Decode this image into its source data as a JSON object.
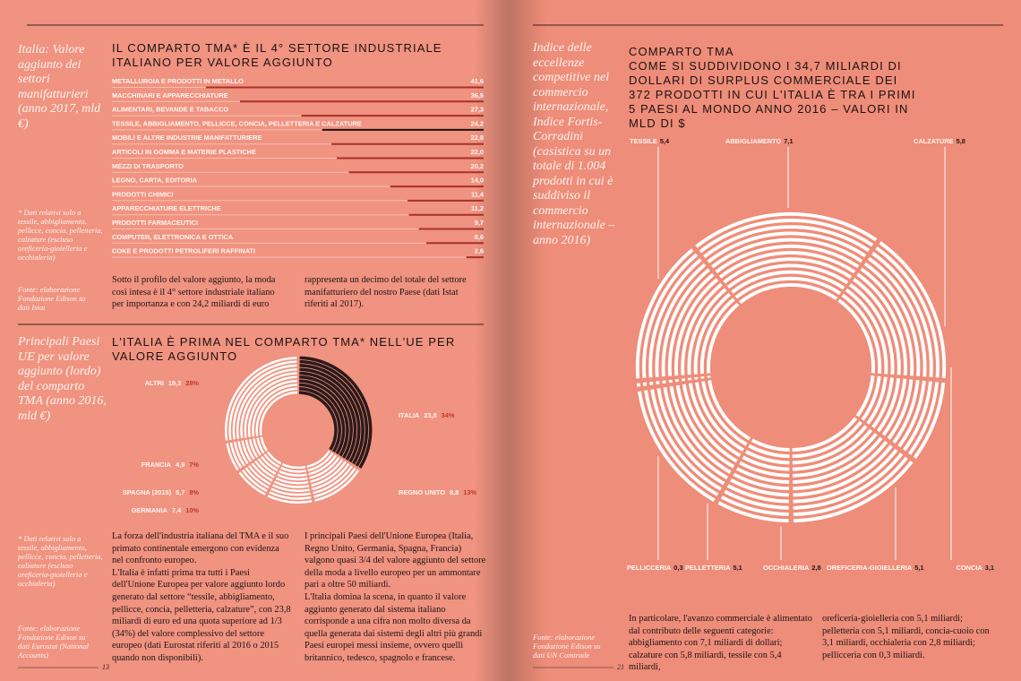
{
  "left_page": {
    "sidebar_1": "Italia: Valore aggiunto dei settori manifatturieri (anno 2017, mld €)",
    "note_1": "* Dati relativi solo a tessile, abbigliamento, pellicce, concia, pelletteria, calzature (escluso oreficeria-gioielleria e occhialeria)",
    "source_1": "Fonte: elaborazione Fondazione Edison su dati Istat",
    "text_1": [
      "Sotto il profilo del valore aggiunto, la moda così intesa è il 4° settore industriale italiano per importanza e con 24,2 miliardi di euro",
      "rappresenta un decimo del totale del settore manifatturiero del nostro Paese (dati Istat riferiti al 2017)."
    ],
    "sidebar_2": "Principali Paesi UE per valore aggiunto (lordo) del comparto TMA (anno 2016, mld €)",
    "note_2": "* Dati relativi solo a tessile, abbigliamento, pellicce, concia, pelletteria, calzature (escluso oreficeria-gioielleria e occhialeria)",
    "source_2": "Fonte: elaborazione Fondazione Edison su dati Eurostat (National Accounts)",
    "text_2": [
      [
        "La forza dell'industria italiana del TMA e il suo primato continentale emergono con evidenza nel confronto europeo.",
        "L'Italia è infatti prima tra tutti i Paesi dell'Unione Europea per valore aggiunto lordo generato dal settore “tessile, abbigliamento, pellicce, concia, pelletteria, calzature”, con 23,8 miliardi di euro ed una quota superiore ad 1/3 (34%) del valore complessivo del settore europeo (dati Eurostat riferiti al 2016 o 2015 quando non disponibili)."
      ],
      [
        "I principali Paesi dell'Unione Europea (Italia, Regno Unito, Germania, Spagna, Francia) valgono quasi 3/4 del valore aggiunto del settore della moda a livello europeo per un ammontare pari a oltre 50 miliardi.",
        "L'Italia domina la scena, in quanto il valore aggiunto generato dal sistema italiano corrisponde a una cifra non molto diversa da quella generata dai sistemi degli altri più grandi Paesi europei messi insieme, ovvero quelli britannico, tedesco, spagnolo e francese."
      ]
    ],
    "page_number": "13"
  },
  "right_page": {
    "sidebar": "Indice delle eccellenze competitive nel commercio internazionale, Indice Fortis-Corradini (casistica su un totale di 1.004 prodotti in cui è suddiviso il commercio internazionale – anno 2016)",
    "source": "Fonte: elaborazione Fondazione Edison su dati UN Comtrade",
    "text": [
      "In particolare, l'avanzo commerciale è alimentato dal contributo delle seguenti categorie: abbigliamento con 7,1 miliardi di dollari; calzature con 5,8 miliardi, tessile con 5,4 miliardi,",
      "oreficeria-gioielleria con 5,1 miliardi; pelletteria con 5,1 miliardi, concia-cuoio con 3,1 miliardi, occhialeria con 2,8 miliardi; pellicceria con 0,3 miliardi."
    ],
    "page_number": "21"
  },
  "chart_data": [
    {
      "type": "bar",
      "orientation": "horizontal",
      "title": "IL COMPARTO TMA* È IL 4° SETTORE INDUSTRIALE ITALIANO PER VALORE AGGIUNTO",
      "categories": [
        "METALLURGIA E PRODOTTI IN METALLO",
        "MACCHINARI E APPARECCHIATURE",
        "ALIMENTARI, BEVANDE E TABACCO",
        "TESSILE, ABBIGLIAMENTO, PELLICCE, CONCIA, PELLETTERIA E CALZATURE",
        "MOBILI E ALTRE INDUSTRIE MANIFATTURIERE",
        "ARTICOLI IN GOMMA E MATERIE PLASTICHE",
        "MEZZI DI TRASPORTO",
        "LEGNO, CARTA, EDITORIA",
        "PRODOTTI CHIMICI",
        "APPARECCHIATURE ELETTRICHE",
        "PRODOTTI FARMACEUTICI",
        "COMPUTER, ELETTRONICA E OTTICA",
        "COKE E PRODOTTI PETROLIFERI RAFFINATI"
      ],
      "values": [
        41.6,
        36.5,
        27.3,
        24.2,
        22.8,
        22.0,
        20.2,
        14.0,
        11.4,
        11.2,
        9.7,
        8.6,
        2.6
      ],
      "value_labels": [
        "41,6",
        "36,5",
        "27,3",
        "24,2",
        "22,8",
        "22,0",
        "20,2",
        "14,0",
        "11,4",
        "11,2",
        "9,7",
        "8,6",
        "2,6"
      ],
      "colors": [
        "#a8312b",
        "#a8312b",
        "#a8312b",
        "#1c1414",
        "#a8312b",
        "#a8312b",
        "#a8312b",
        "#a8312b",
        "#a8312b",
        "#a8312b",
        "#a8312b",
        "#a8312b",
        "#a8312b"
      ]
    },
    {
      "type": "pie",
      "title": "L'ITALIA È PRIMA NEL COMPARTO TMA* NELL'UE PER VALORE AGGIUNTO",
      "categories": [
        "ITALIA",
        "REGNO UNITO",
        "GERMANIA",
        "SPAGNA (2015)",
        "FRANCIA",
        "ALTRI"
      ],
      "values": [
        23.8,
        8.8,
        7.4,
        5.7,
        4.9,
        19.3
      ],
      "value_labels": [
        "23,8",
        "8,8",
        "7,4",
        "5,7",
        "4,9",
        "19,3"
      ],
      "shares": [
        34,
        13,
        10,
        8,
        7,
        28
      ],
      "share_labels": [
        "34%",
        "13%",
        "10%",
        "8%",
        "7%",
        "28%"
      ],
      "colors": [
        "#2d1a1a",
        "#ffffff",
        "#ffffff",
        "#ffffff",
        "#ffffff",
        "#ffffff"
      ]
    },
    {
      "type": "pie",
      "title": "COMPARTO TMA",
      "subtitle": "COME SI SUDDIVIDONO I 34,7 MILIARDI DI DOLLARI DI SURPLUS COMMERCIALE DEI 372 PRODOTTI IN CUI L'ITALIA È TRA I PRIMI 5 PAESI AL MONDO ANNO 2016 – VALORI IN MLD DI $",
      "categories": [
        "TESSILE",
        "ABBIGLIAMENTO",
        "CALZATURE",
        "CONCIA",
        "OREFICERIA-GIOIELLERIA",
        "OCCHIALERIA",
        "PELLETTERIA",
        "PELLICCERIA"
      ],
      "values": [
        5.4,
        7.1,
        5.8,
        3.1,
        5.1,
        2.8,
        5.1,
        0.3
      ],
      "value_labels": [
        "5,4",
        "7,1",
        "5,8",
        "3,1",
        "5,1",
        "2,8",
        "5,1",
        "0,3"
      ],
      "color": "#ffffff"
    }
  ]
}
